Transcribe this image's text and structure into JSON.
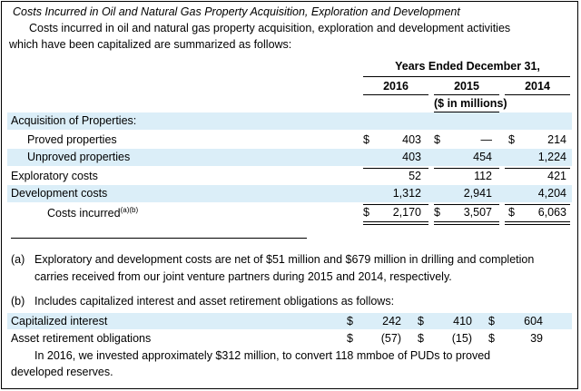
{
  "heading": "Costs Incurred in Oil and Natural Gas Property Acquisition, Exploration and Development",
  "intro_line1": "Costs incurred in oil and natural gas property acquisition, exploration and development activities",
  "intro_line2": "which have been capitalized are summarized as follows:",
  "table": {
    "period_header": "Years Ended December 31,",
    "years": [
      "2016",
      "2015",
      "2014"
    ],
    "units": "($ in millions)",
    "section_label": "Acquisition of Properties:",
    "rows": [
      {
        "label": "Proved properties",
        "d1": "$",
        "v1": "403",
        "d2": "$",
        "v2": "—",
        "d3": "$",
        "v3": "214"
      },
      {
        "label": "Unproved properties",
        "d1": "",
        "v1": "403",
        "d2": "",
        "v2": "454",
        "d3": "",
        "v3": "1,224"
      },
      {
        "label": "Exploratory costs",
        "d1": "",
        "v1": "52",
        "d2": "",
        "v2": "112",
        "d3": "",
        "v3": "421"
      },
      {
        "label": "Development costs",
        "d1": "",
        "v1": "1,312",
        "d2": "",
        "v2": "2,941",
        "d3": "",
        "v3": "4,204"
      },
      {
        "label": "Costs incurred",
        "sup": "(a)(b)",
        "d1": "$",
        "v1": "2,170",
        "d2": "$",
        "v2": "3,507",
        "d3": "$",
        "v3": "6,063"
      }
    ]
  },
  "footnote_a_marker": "(a)",
  "footnote_a_line1": "Exploratory and development costs are net of $51 million and $679 million in drilling and completion",
  "footnote_a_line2": "carries received from our joint venture partners during 2015 and 2014, respectively.",
  "footnote_b_marker": "(b)",
  "footnote_b_text": "Includes capitalized interest and asset retirement obligations as follows:",
  "subtable": {
    "rows": [
      {
        "label": "Capitalized interest",
        "d1": "$",
        "v1": "242",
        "d2": "$",
        "v2": "410",
        "d3": "$",
        "v3": "604"
      },
      {
        "label": "Asset retirement obligations",
        "d1": "$",
        "v1": "(57)",
        "d2": "$",
        "v2": "(15)",
        "d3": "$",
        "v3": "39"
      }
    ]
  },
  "closing_line1": "In 2016, we invested approximately $312 million, to convert 118 mmboe of PUDs to proved",
  "closing_line2": "developed reserves."
}
